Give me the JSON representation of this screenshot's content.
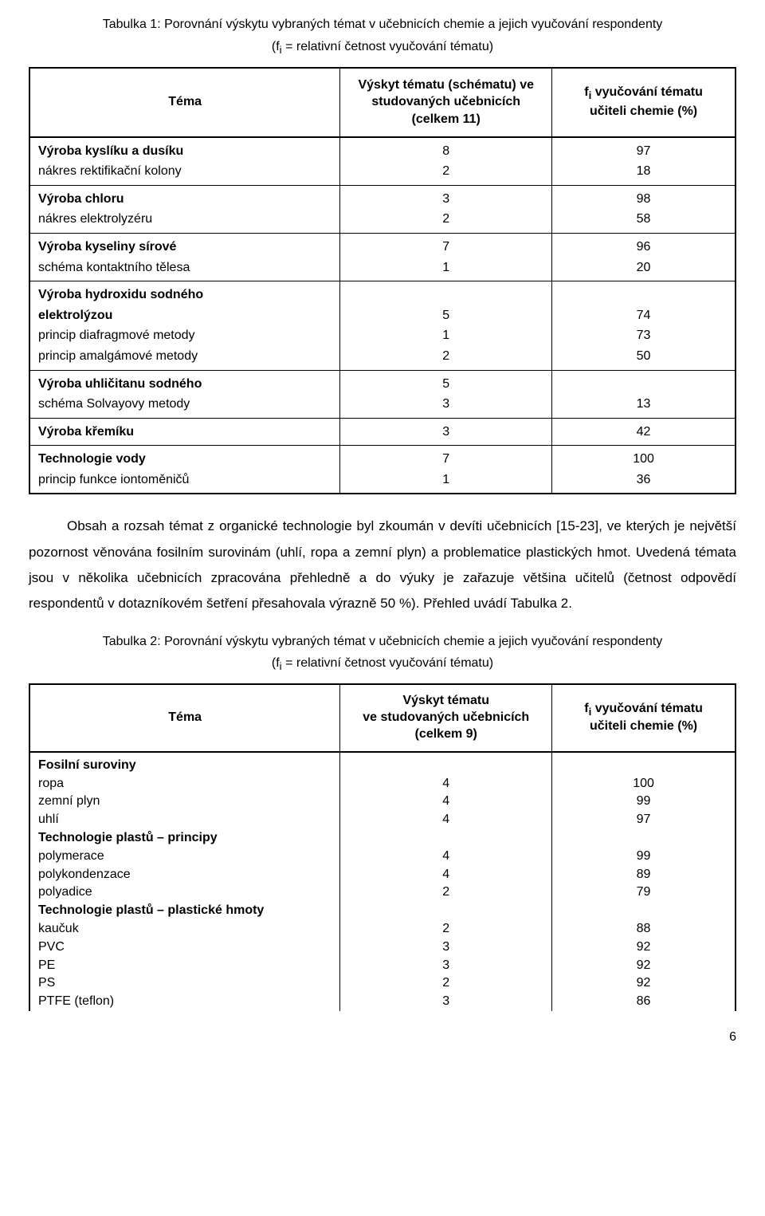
{
  "fonts": {
    "body_family": "Arial",
    "caption_size_pt": 16,
    "table_size_pt": 16,
    "para_size_pt": 17,
    "colors": {
      "text": "#000000",
      "border_outer": "#000000",
      "border_inner": "#000000",
      "background": "#ffffff"
    }
  },
  "table1": {
    "caption": "Tabulka 1: Porovnání výskytu vybraných témat v učebnicích chemie a jejich vyučování respondenty",
    "subcaption_prefix": "(f",
    "subcaption_sub": "i",
    "subcaption_rest": " = relativní četnost vyučování tématu)",
    "headers": {
      "c1": "Téma",
      "c2_l1": "Výskyt tématu (schématu) ve",
      "c2_l2": "studovaných učebnicích",
      "c2_l3": "(celkem 11)",
      "c3_l1_pre": "f",
      "c3_l1_sub": "i",
      "c3_l1_post": " vyučování tématu",
      "c3_l2": "učiteli chemie (%)"
    },
    "type": "table",
    "column_widths_pct": [
      44,
      30,
      26
    ],
    "groups": [
      {
        "rows": [
          {
            "label": "Výroba kyslíku a dusíku",
            "bold": true,
            "v1": "8",
            "v2": "97"
          },
          {
            "label": "nákres rektifikační kolony",
            "bold": false,
            "v1": "2",
            "v2": "18"
          }
        ]
      },
      {
        "rows": [
          {
            "label": "Výroba chloru",
            "bold": true,
            "v1": "3",
            "v2": "98"
          },
          {
            "label": "nákres elektrolyzéru",
            "bold": false,
            "v1": "2",
            "v2": "58"
          }
        ]
      },
      {
        "rows": [
          {
            "label": "Výroba kyseliny sírové",
            "bold": true,
            "v1": "7",
            "v2": "96"
          },
          {
            "label": "schéma kontaktního tělesa",
            "bold": false,
            "v1": "1",
            "v2": "20"
          }
        ]
      },
      {
        "rows": [
          {
            "label": "Výroba hydroxidu sodného",
            "bold": true,
            "v1": "",
            "v2": ""
          },
          {
            "label": "elektrolýzou",
            "bold": true,
            "v1": "5",
            "v2": "74"
          },
          {
            "label": "princip diafragmové metody",
            "bold": false,
            "v1": "1",
            "v2": "73"
          },
          {
            "label": "princip amalgámové metody",
            "bold": false,
            "v1": "2",
            "v2": "50"
          }
        ]
      },
      {
        "rows": [
          {
            "label": "Výroba uhličitanu sodného",
            "bold": true,
            "v1": "5",
            "v2": ""
          },
          {
            "label": "schéma Solvayovy metody",
            "bold": false,
            "v1": "3",
            "v2": "13"
          }
        ]
      },
      {
        "rows": [
          {
            "label": "Výroba křemíku",
            "bold": true,
            "v1": "3",
            "v2": "42"
          }
        ]
      },
      {
        "rows": [
          {
            "label": "Technologie vody",
            "bold": true,
            "v1": "7",
            "v2": "100"
          },
          {
            "label": "princip funkce iontoměničů",
            "bold": false,
            "v1": "1",
            "v2": "36"
          }
        ]
      }
    ]
  },
  "paragraph": {
    "text": "Obsah a rozsah témat z organické technologie byl zkoumán v devíti učebnicích [15-23], ve kterých je největší pozornost věnována fosilním surovinám (uhlí, ropa a zemní plyn) a problematice plastických hmot. Uvedená témata jsou v několika učebnicích zpracována přehledně a do výuky je zařazuje většina učitelů (četnost odpovědí respondentů v dotazníkovém šetření přesahovala výrazně 50 %). Přehled uvádí Tabulka 2."
  },
  "table2": {
    "caption": "Tabulka 2:  Porovnání výskytu vybraných témat v učebnicích chemie a jejich vyučování respondenty",
    "subcaption_prefix": "(f",
    "subcaption_sub": "i",
    "subcaption_rest": " = relativní četnost vyučování tématu)",
    "headers": {
      "c1": "Téma",
      "c2_l1": "Výskyt tématu",
      "c2_l2": "ve studovaných učebnicích",
      "c2_l3": "(celkem 9)",
      "c3_l1_pre": "f",
      "c3_l1_sub": "i",
      "c3_l1_post": " vyučování tématu",
      "c3_l2": "učiteli chemie (%)"
    },
    "type": "table",
    "column_widths_pct": [
      44,
      30,
      26
    ],
    "rows": [
      {
        "label": "Fosilní suroviny",
        "bold": true,
        "v1": "",
        "v2": ""
      },
      {
        "label": "ropa",
        "bold": false,
        "v1": "4",
        "v2": "100"
      },
      {
        "label": "zemní plyn",
        "bold": false,
        "v1": "4",
        "v2": "99"
      },
      {
        "label": "uhlí",
        "bold": false,
        "v1": "4",
        "v2": "97"
      },
      {
        "label": "Technologie plastů – principy",
        "bold": true,
        "v1": "",
        "v2": ""
      },
      {
        "label": "polymerace",
        "bold": false,
        "v1": "4",
        "v2": "99"
      },
      {
        "label": "polykondenzace",
        "bold": false,
        "v1": "4",
        "v2": "89"
      },
      {
        "label": "polyadice",
        "bold": false,
        "v1": "2",
        "v2": "79"
      },
      {
        "label": "Technologie plastů – plastické hmoty",
        "bold": true,
        "v1": "",
        "v2": ""
      },
      {
        "label": "kaučuk",
        "bold": false,
        "v1": "2",
        "v2": "88"
      },
      {
        "label": "PVC",
        "bold": false,
        "v1": "3",
        "v2": "92"
      },
      {
        "label": "PE",
        "bold": false,
        "v1": "3",
        "v2": "92"
      },
      {
        "label": "PS",
        "bold": false,
        "v1": "2",
        "v2": "92"
      },
      {
        "label": "PTFE (teflon)",
        "bold": false,
        "v1": "3",
        "v2": "86"
      }
    ]
  },
  "page_number": "6"
}
